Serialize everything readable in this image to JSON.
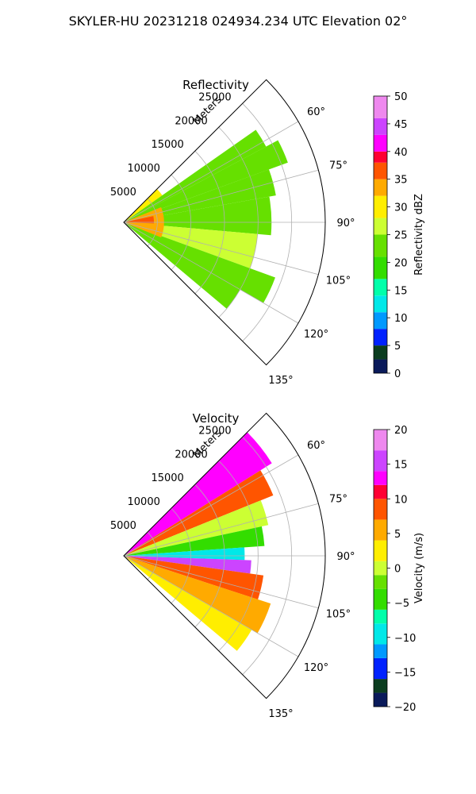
{
  "title": "SKYLER-HU  20231218  024934.234 UTC Elevation 02°",
  "chart_data": [
    {
      "type": "heatmap",
      "projection": "polar-sector",
      "title": "Reflectivity",
      "range_label": "Meters",
      "range_ticks": [
        5000,
        10000,
        15000,
        20000,
        25000
      ],
      "range_max": 30000,
      "azimuth_range_deg": [
        45,
        135
      ],
      "azimuth_ticks": [
        60,
        75,
        90,
        105,
        120,
        135
      ],
      "grid": true,
      "colorbar": {
        "label": "Reflectivity dBZ",
        "min": 0,
        "max": 50,
        "ticks": [
          0,
          5,
          10,
          15,
          20,
          25,
          30,
          35,
          40,
          45,
          50
        ],
        "colormap": "NWSRef",
        "stops": [
          {
            "v": 0,
            "color": "#0a1a5a"
          },
          {
            "v": 2.5,
            "color": "#0b3d1f"
          },
          {
            "v": 5,
            "color": "#0022ff"
          },
          {
            "v": 8,
            "color": "#0099ff"
          },
          {
            "v": 11,
            "color": "#00e8e8"
          },
          {
            "v": 14,
            "color": "#00ffaa"
          },
          {
            "v": 17,
            "color": "#33dd00"
          },
          {
            "v": 21,
            "color": "#66e000"
          },
          {
            "v": 25,
            "color": "#ccff33"
          },
          {
            "v": 28,
            "color": "#ffee00"
          },
          {
            "v": 32,
            "color": "#ffaa00"
          },
          {
            "v": 35,
            "color": "#ff5500"
          },
          {
            "v": 38,
            "color": "#ff0033"
          },
          {
            "v": 40,
            "color": "#ff00ff"
          },
          {
            "v": 43,
            "color": "#cc44ff"
          },
          {
            "v": 46,
            "color": "#ee88ee"
          },
          {
            "v": 50,
            "color": "#ffe8ff"
          }
        ]
      },
      "field": [
        {
          "az": [
            45,
            55
          ],
          "r": [
            0,
            7000
          ],
          "v": 30
        },
        {
          "az": [
            55,
            62
          ],
          "r": [
            0,
            24000
          ],
          "v": 22
        },
        {
          "az": [
            62,
            70
          ],
          "r": [
            0,
            26000
          ],
          "v": 24
        },
        {
          "az": [
            70,
            80
          ],
          "r": [
            0,
            23000
          ],
          "v": 23
        },
        {
          "az": [
            80,
            95
          ],
          "r": [
            0,
            22000
          ],
          "v": 21
        },
        {
          "az": [
            95,
            110
          ],
          "r": [
            0,
            20000
          ],
          "v": 25
        },
        {
          "az": [
            110,
            120
          ],
          "r": [
            0,
            24000
          ],
          "v": 24
        },
        {
          "az": [
            120,
            130
          ],
          "r": [
            0,
            20000
          ],
          "v": 23
        },
        {
          "az": [
            68,
            112
          ],
          "r": [
            0,
            6000
          ],
          "v": 33
        },
        {
          "az": [
            78,
            92
          ],
          "r": [
            0,
            4500
          ],
          "v": 37
        }
      ]
    },
    {
      "type": "heatmap",
      "projection": "polar-sector",
      "title": "Velocity",
      "range_label": "Meters",
      "range_ticks": [
        5000,
        10000,
        15000,
        20000,
        25000
      ],
      "range_max": 30000,
      "azimuth_range_deg": [
        45,
        135
      ],
      "azimuth_ticks": [
        60,
        75,
        90,
        105,
        120,
        135
      ],
      "grid": true,
      "colorbar": {
        "label": "Velocity (m/s)",
        "min": -20,
        "max": 20,
        "ticks": [
          -20,
          -15,
          -10,
          -5,
          0,
          5,
          10,
          15,
          20
        ],
        "colormap": "NWSVel",
        "stops": [
          {
            "v": -20,
            "color": "#0a1a5a"
          },
          {
            "v": -18,
            "color": "#0b3d1f"
          },
          {
            "v": -16,
            "color": "#0022ff"
          },
          {
            "v": -13,
            "color": "#0099ff"
          },
          {
            "v": -11,
            "color": "#00e8e8"
          },
          {
            "v": -8,
            "color": "#00ffaa"
          },
          {
            "v": -6,
            "color": "#33dd00"
          },
          {
            "v": -3,
            "color": "#66e000"
          },
          {
            "v": -1,
            "color": "#ccff33"
          },
          {
            "v": 1,
            "color": "#ffee00"
          },
          {
            "v": 4,
            "color": "#ffaa00"
          },
          {
            "v": 7,
            "color": "#ff5500"
          },
          {
            "v": 10,
            "color": "#ff0033"
          },
          {
            "v": 12,
            "color": "#ff00ff"
          },
          {
            "v": 14,
            "color": "#cc44ff"
          },
          {
            "v": 17,
            "color": "#ee88ee"
          },
          {
            "v": 20,
            "color": "#ffe8ff"
          }
        ]
      },
      "field": [
        {
          "az": [
            45,
            58
          ],
          "r": [
            0,
            26000
          ],
          "v": 13
        },
        {
          "az": [
            58,
            68
          ],
          "r": [
            0,
            24000
          ],
          "v": 9
        },
        {
          "az": [
            68,
            78
          ],
          "r": [
            0,
            22000
          ],
          "v": 0
        },
        {
          "az": [
            78,
            86
          ],
          "r": [
            0,
            21000
          ],
          "v": -4
        },
        {
          "az": [
            86,
            92
          ],
          "r": [
            0,
            18000
          ],
          "v": -10
        },
        {
          "az": [
            92,
            98
          ],
          "r": [
            0,
            19000
          ],
          "v": 14
        },
        {
          "az": [
            98,
            108
          ],
          "r": [
            0,
            21000
          ],
          "v": 8
        },
        {
          "az": [
            108,
            120
          ],
          "r": [
            0,
            23000
          ],
          "v": 4
        },
        {
          "az": [
            120,
            130
          ],
          "r": [
            0,
            22000
          ],
          "v": 1
        }
      ]
    }
  ]
}
